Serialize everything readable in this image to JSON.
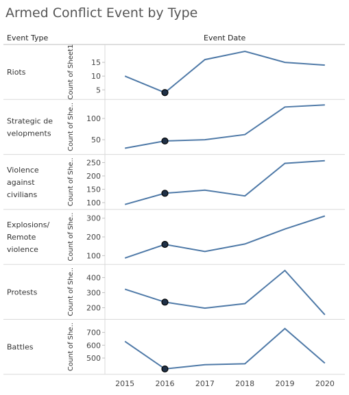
{
  "title": "Armed Conflict Event by Type",
  "headers": {
    "row_dim": "Event Type",
    "col_dim": "Event Date"
  },
  "colors": {
    "line": "#4e79a7",
    "marker_fill": "#1f3046",
    "grid": "#d9d9d9",
    "text": "#555555"
  },
  "chart_data": {
    "type": "line",
    "title": "Armed Conflict Event by Type",
    "x": [
      "2015",
      "2016",
      "2017",
      "2018",
      "2019",
      "2020"
    ],
    "highlighted_x": "2016",
    "panels": [
      {
        "row": "Riots",
        "ylabel": "Count of Sheet1",
        "ylim": [
          3,
          20
        ],
        "ticks": [
          5,
          10,
          15
        ],
        "values": [
          10,
          4,
          16,
          19,
          15,
          14
        ]
      },
      {
        "row": "Strategic developments",
        "row_lines": [
          "Strategic de",
          "velopments"
        ],
        "ylabel": "Count of She..",
        "ylim": [
          25,
          135
        ],
        "ticks": [
          50,
          100
        ],
        "values": [
          30,
          47,
          50,
          62,
          127,
          132
        ]
      },
      {
        "row": "Violence against civilians",
        "row_lines": [
          "Violence",
          "against",
          "civilians"
        ],
        "ylabel": "Count of She..",
        "ylim": [
          90,
          265
        ],
        "ticks": [
          100,
          150,
          200,
          250
        ],
        "values": [
          93,
          135,
          147,
          125,
          247,
          257
        ]
      },
      {
        "row": "Explosions/ Remote violence",
        "row_lines": [
          "Explosions/",
          "Remote",
          "violence"
        ],
        "ylabel": "Count of She..",
        "ylim": [
          75,
          325
        ],
        "ticks": [
          100,
          200,
          300
        ],
        "values": [
          87,
          160,
          122,
          162,
          242,
          312
        ]
      },
      {
        "row": "Protests",
        "ylabel": "Count of She..",
        "ylim": [
          150,
          460
        ],
        "ticks": [
          200,
          300,
          400
        ],
        "values": [
          323,
          237,
          197,
          227,
          447,
          153
        ]
      },
      {
        "row": "Battles",
        "ylabel": "Count of She..",
        "ylim": [
          405,
          770
        ],
        "ticks": [
          500,
          600,
          700
        ],
        "values": [
          630,
          415,
          448,
          455,
          730,
          460
        ]
      }
    ]
  }
}
